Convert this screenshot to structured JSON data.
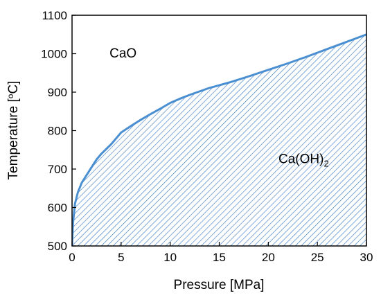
{
  "chart_data": {
    "type": "area",
    "title": "",
    "xlabel": "Pressure [MPa]",
    "ylabel_main": "Temperature [",
    "ylabel_degree": "o",
    "ylabel_unit": "C]",
    "xlim": [
      0,
      30
    ],
    "ylim": [
      500,
      1100
    ],
    "xticks": [
      0,
      5,
      10,
      15,
      20,
      25,
      30
    ],
    "yticks": [
      500,
      600,
      700,
      800,
      900,
      1000,
      1100
    ],
    "grid": false,
    "legend": "none",
    "boundary": {
      "x": [
        0,
        0.1,
        0.3,
        0.6,
        1,
        1.5,
        2,
        2.5,
        3,
        4,
        5,
        6,
        7,
        8,
        9,
        10,
        11,
        12,
        13,
        14,
        15,
        16,
        18,
        20,
        22,
        24,
        26,
        28,
        30
      ],
      "y": [
        500,
        560,
        610,
        640,
        665,
        685,
        705,
        725,
        740,
        765,
        795,
        812,
        828,
        843,
        857,
        872,
        883,
        893,
        902,
        911,
        918,
        925,
        941,
        958,
        975,
        993,
        1012,
        1031,
        1050
      ]
    },
    "fill": "below-boundary",
    "fill_style": "diagonal-hatch",
    "line_color": "#4a8fd1",
    "hatch_color": "#3a7cc4",
    "regions": [
      {
        "label": "CaO",
        "x": 5.2,
        "y": 990
      },
      {
        "label_main": "Ca(OH)",
        "label_sub": "2",
        "x": 23.6,
        "y": 715
      }
    ]
  }
}
